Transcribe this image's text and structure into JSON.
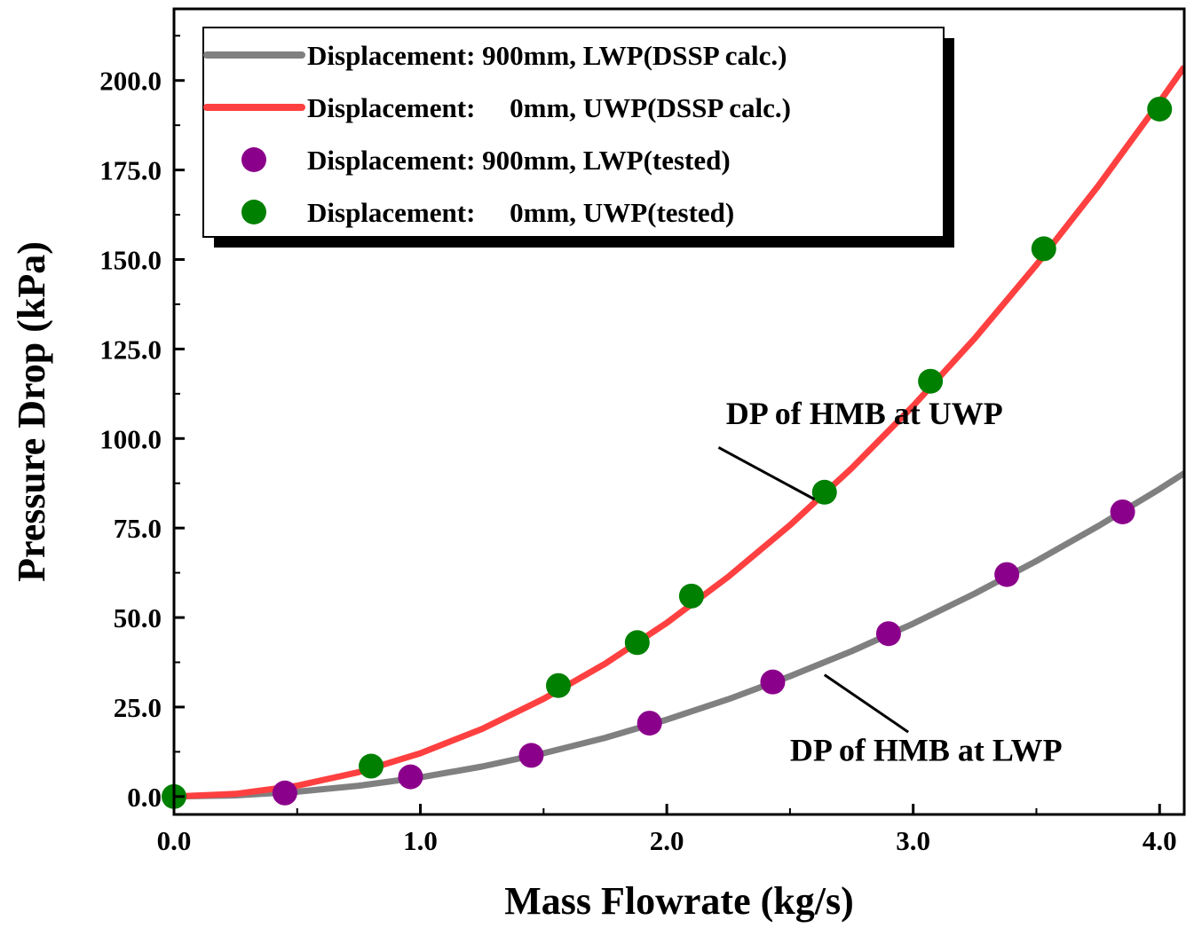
{
  "chart_data": {
    "type": "line",
    "xlabel": "Mass Flowrate (kg/s)",
    "ylabel": "Pressure Drop (kPa)",
    "xlim": [
      0.0,
      4.1
    ],
    "ylim": [
      -5.0,
      220.0
    ],
    "x_ticks": [
      "0.0",
      "1.0",
      "2.0",
      "3.0",
      "4.0"
    ],
    "x_tick_values": [
      0.0,
      1.0,
      2.0,
      3.0,
      4.0
    ],
    "y_ticks": [
      "0.0",
      "25.0",
      "50.0",
      "75.0",
      "100.0",
      "125.0",
      "150.0",
      "175.0",
      "200.0"
    ],
    "y_tick_values": [
      0.0,
      25.0,
      50.0,
      75.0,
      100.0,
      125.0,
      150.0,
      175.0,
      200.0
    ],
    "grid": false,
    "legend_position": "top-left",
    "series": [
      {
        "name": "Displacement: 900mm, LWP(DSSP calc.)",
        "kind": "line",
        "color": "#808080",
        "x": [
          0.0,
          0.25,
          0.5,
          0.75,
          1.0,
          1.25,
          1.5,
          1.75,
          2.0,
          2.25,
          2.5,
          2.75,
          3.0,
          3.25,
          3.5,
          3.75,
          4.0,
          4.1
        ],
        "y": [
          0.0,
          0.34,
          1.34,
          3.02,
          5.37,
          8.39,
          12.1,
          16.4,
          21.5,
          27.2,
          33.6,
          40.6,
          48.3,
          56.7,
          65.8,
          75.5,
          85.9,
          90.3
        ]
      },
      {
        "name": "Displacement:     0mm, UWP(DSSP calc.)",
        "kind": "line",
        "color": "#ff4040",
        "x": [
          0.0,
          0.25,
          0.5,
          0.75,
          1.0,
          1.25,
          1.5,
          1.75,
          2.0,
          2.25,
          2.5,
          2.75,
          3.0,
          3.25,
          3.5,
          3.75,
          4.0,
          4.1
        ],
        "y": [
          0.0,
          0.76,
          3.03,
          6.82,
          12.1,
          18.9,
          27.3,
          37.1,
          48.5,
          61.4,
          75.8,
          91.7,
          109.1,
          128.0,
          148.5,
          170.5,
          194.0,
          203.8
        ]
      },
      {
        "name": "Displacement: 900mm, LWP(tested)",
        "kind": "scatter",
        "color": "#8b008b",
        "x": [
          0.45,
          0.96,
          1.45,
          1.93,
          2.43,
          2.9,
          3.38,
          3.85
        ],
        "y": [
          1.0,
          5.5,
          11.5,
          20.5,
          32.0,
          45.5,
          62.0,
          79.5
        ]
      },
      {
        "name": "Displacement:     0mm, UWP(tested)",
        "kind": "scatter",
        "color": "#008000",
        "x": [
          0.0,
          0.8,
          1.56,
          1.88,
          2.1,
          2.64,
          3.07,
          3.53,
          4.0
        ],
        "y": [
          0.0,
          8.5,
          31.0,
          43.0,
          56.0,
          85.0,
          116.0,
          153.0,
          192.0
        ]
      }
    ],
    "annotations": [
      {
        "text": "DP of HMB at UWP",
        "x": 2.24,
        "y": 104.0,
        "arrow_from": [
          2.21,
          97.5
        ],
        "arrow_to": [
          2.6,
          83.0
        ]
      },
      {
        "text": "DP of HMB at LWP",
        "x": 2.5,
        "y": 10.0,
        "arrow_from": [
          2.98,
          18.0
        ],
        "arrow_to": [
          2.64,
          34.0
        ]
      }
    ]
  }
}
